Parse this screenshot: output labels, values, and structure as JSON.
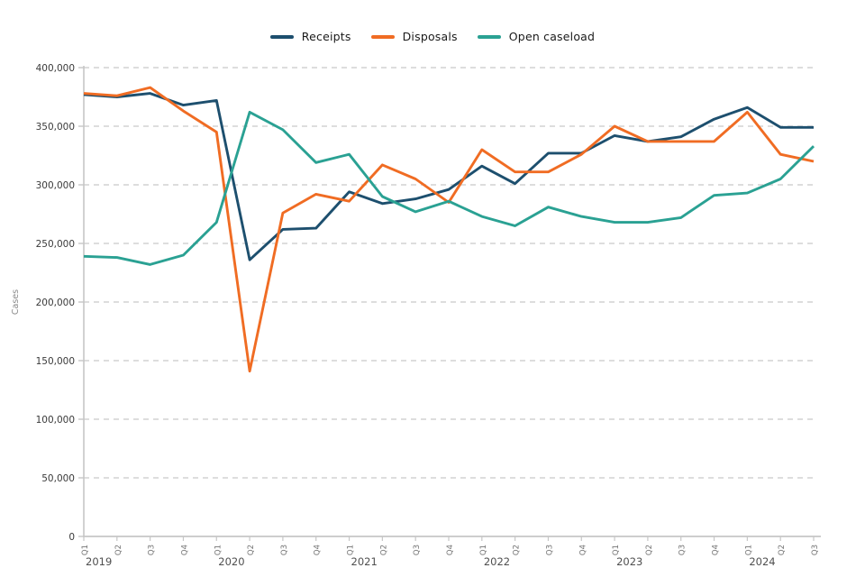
{
  "page": {
    "background_color": "#ffffff"
  },
  "chart_data": {
    "type": "line",
    "title": "",
    "xlabel": "",
    "ylabel": "Cases",
    "ylim": [
      0,
      400000
    ],
    "grid": "horizontal-dashed",
    "legend_position": "top-center",
    "colors": {
      "axis": "#c6c6c6",
      "gridline": "#d2d2d2",
      "y_tick_label": "#3a3a3a",
      "quarter_label": "#757575",
      "year_label": "#4f4f4f",
      "ylabel_color": "#8a8a8a"
    },
    "y_ticks": [
      {
        "value": 0,
        "label": "0"
      },
      {
        "value": 50000,
        "label": "50,000"
      },
      {
        "value": 100000,
        "label": "100,000"
      },
      {
        "value": 150000,
        "label": "150,000"
      },
      {
        "value": 200000,
        "label": "200,000"
      },
      {
        "value": 250000,
        "label": "250,000"
      },
      {
        "value": 300000,
        "label": "300,000"
      },
      {
        "value": 350000,
        "label": "350,000"
      },
      {
        "value": 400000,
        "label": "400,000"
      }
    ],
    "x_quarter_labels": [
      "Q1",
      "Q2",
      "Q3",
      "Q4",
      "Q1",
      "Q2",
      "Q3",
      "Q4",
      "Q1",
      "Q2",
      "Q3",
      "Q4",
      "Q1",
      "Q2",
      "Q3",
      "Q4",
      "Q1",
      "Q2",
      "Q3",
      "Q4",
      "Q1",
      "Q2",
      "Q3"
    ],
    "x_year_labels": [
      {
        "label": "2019",
        "quarter_index": 0
      },
      {
        "label": "2020",
        "quarter_index": 4
      },
      {
        "label": "2021",
        "quarter_index": 8
      },
      {
        "label": "2022",
        "quarter_index": 12
      },
      {
        "label": "2023",
        "quarter_index": 16
      },
      {
        "label": "2024",
        "quarter_index": 20
      }
    ],
    "series": [
      {
        "name": "Receipts",
        "color": "#1d4f6e",
        "values": [
          377000,
          375000,
          378000,
          368000,
          372000,
          236000,
          262000,
          263000,
          294000,
          284000,
          288000,
          296000,
          316000,
          301000,
          327000,
          327000,
          342000,
          337000,
          341000,
          356000,
          366000,
          349000,
          349000
        ]
      },
      {
        "name": "Disposals",
        "color": "#f06c23",
        "values": [
          378000,
          376000,
          383000,
          363000,
          345000,
          141000,
          276000,
          292000,
          286000,
          317000,
          305000,
          285000,
          330000,
          311000,
          311000,
          326000,
          350000,
          337000,
          337000,
          337000,
          362000,
          326000,
          320000
        ]
      },
      {
        "name": "Open caseload",
        "color": "#2aa193",
        "values": [
          239000,
          238000,
          232000,
          240000,
          268000,
          362000,
          347000,
          319000,
          326000,
          290000,
          277000,
          286000,
          273000,
          265000,
          281000,
          273000,
          268000,
          268000,
          272000,
          291000,
          293000,
          305000,
          333000
        ]
      }
    ]
  }
}
